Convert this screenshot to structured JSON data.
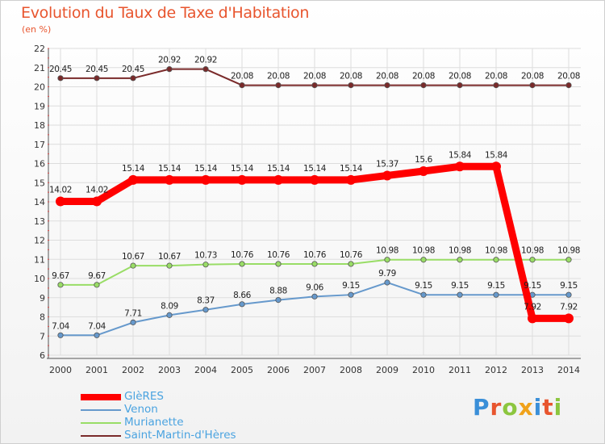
{
  "title": "Evolution du Taux de Taxe d'Habitation",
  "unit": "(en %)",
  "brand": {
    "letters": [
      "P",
      "r",
      "o",
      "x",
      "i",
      "t",
      "i"
    ],
    "colors": [
      "#3a8fd8",
      "#e8552e",
      "#8cc63f",
      "#f0a21a",
      "#3a8fd8",
      "#e8552e",
      "#8cc63f"
    ]
  },
  "chart_data": {
    "type": "line",
    "x": [
      "2000",
      "2001",
      "2002",
      "2003",
      "2004",
      "2005",
      "2006",
      "2007",
      "2008",
      "2009",
      "2010",
      "2011",
      "2012",
      "2013",
      "2014"
    ],
    "ylim": [
      6,
      22
    ],
    "yticks": [
      "6",
      "7",
      "8",
      "9",
      "10",
      "11",
      "12",
      "13",
      "14",
      "15",
      "16",
      "17",
      "18",
      "19",
      "20",
      "21",
      "22"
    ],
    "grid": true,
    "legend_position": "bottom-left",
    "series": [
      {
        "name": "Saint-Martin-d'Hères",
        "color": "#7a2a2a",
        "values": [
          20.45,
          20.45,
          20.45,
          20.92,
          20.92,
          20.08,
          20.08,
          20.08,
          20.08,
          20.08,
          20.08,
          20.08,
          20.08,
          20.08,
          20.08
        ],
        "labels": [
          "20.45",
          "20.45",
          "20.45",
          "20.92",
          "20.92",
          "20.08",
          "20.08",
          "20.08",
          "20.08",
          "20.08",
          "20.08",
          "20.08",
          "20.08",
          "20.08",
          "20.08"
        ]
      },
      {
        "name": "Murianette",
        "color": "#99dd66",
        "values": [
          9.67,
          9.67,
          10.67,
          10.67,
          10.73,
          10.76,
          10.76,
          10.76,
          10.76,
          10.98,
          10.98,
          10.98,
          10.98,
          10.98,
          10.98
        ],
        "labels": [
          "9.67",
          "9.67",
          "10.67",
          "10.67",
          "10.73",
          "10.76",
          "10.76",
          "10.76",
          "10.76",
          "10.98",
          "10.98",
          "10.98",
          "10.98",
          "10.98",
          "10.98"
        ]
      },
      {
        "name": "Venon",
        "color": "#6699cc",
        "values": [
          7.04,
          7.04,
          7.71,
          8.09,
          8.37,
          8.66,
          8.88,
          9.06,
          9.15,
          9.79,
          9.15,
          9.15,
          9.15,
          9.15,
          9.15
        ],
        "labels": [
          "7.04",
          "7.04",
          "7.71",
          "8.09",
          "8.37",
          "8.66",
          "8.88",
          "9.06",
          "9.15",
          "9.79",
          "9.15",
          "9.15",
          "9.15",
          "9.15",
          "9.15"
        ]
      },
      {
        "name": "GlèRES",
        "color": "#ff0000",
        "values": [
          14.02,
          14.02,
          15.14,
          15.14,
          15.14,
          15.14,
          15.14,
          15.14,
          15.14,
          15.37,
          15.6,
          15.84,
          15.84,
          7.92,
          7.92
        ],
        "labels": [
          "14.02",
          "14.02",
          "15.14",
          "15.14",
          "15.14",
          "15.14",
          "15.14",
          "15.14",
          "15.14",
          "15.37",
          "15.6",
          "15.84",
          "15.84",
          "7.92",
          "7.92"
        ]
      }
    ],
    "legend": [
      {
        "name": "GlèRES",
        "color": "#ff0000"
      },
      {
        "name": "Venon",
        "color": "#6699cc"
      },
      {
        "name": "Murianette",
        "color": "#99dd66"
      },
      {
        "name": "Saint-Martin-d'Hères",
        "color": "#7a2a2a"
      }
    ]
  }
}
